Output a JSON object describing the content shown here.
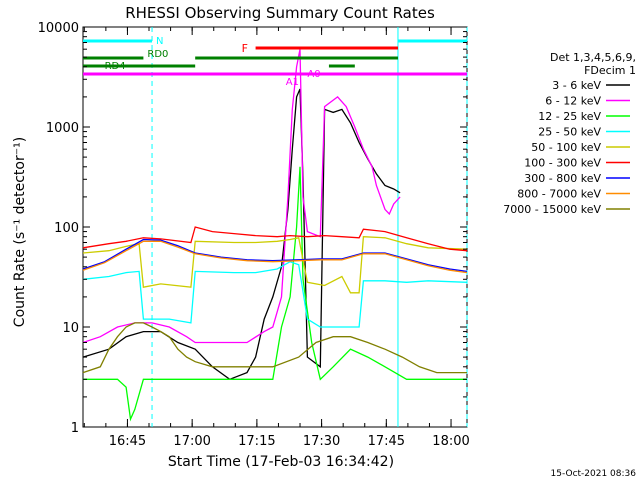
{
  "chart_data": {
    "type": "line",
    "title": "RHESSI Observing Summary Count Rates",
    "xlabel": "Start Time (17-Feb-03 16:34:42)",
    "ylabel": "Count Rate (s⁻¹ detector⁻¹)",
    "yscale": "log",
    "ylim": [
      1,
      10000
    ],
    "xlim_minutes": [
      0,
      89
    ],
    "x_ticks": [
      {
        "label": "16:45",
        "minute": 10.3
      },
      {
        "label": "17:00",
        "minute": 25.3
      },
      {
        "label": "17:15",
        "minute": 40.3
      },
      {
        "label": "17:30",
        "minute": 55.3
      },
      {
        "label": "17:45",
        "minute": 70.3
      },
      {
        "label": "18:00",
        "minute": 85.3
      }
    ],
    "y_ticks": [
      {
        "label": "1",
        "value": 1
      },
      {
        "label": "10",
        "value": 10
      },
      {
        "label": "100",
        "value": 100
      },
      {
        "label": "1000",
        "value": 1000
      },
      {
        "label": "10000",
        "value": 10000
      }
    ],
    "legend_title": [
      "Det 1,3,4,5,6,9,",
      "FDecim 1"
    ],
    "series": [
      {
        "name": "3 - 6 keV",
        "color": "#000000",
        "points": [
          [
            0,
            5
          ],
          [
            6,
            6
          ],
          [
            10,
            8
          ],
          [
            14,
            9
          ],
          [
            18,
            9
          ],
          [
            22,
            7
          ],
          [
            26,
            6
          ],
          [
            30,
            4
          ],
          [
            34,
            3
          ],
          [
            38,
            3.5
          ],
          [
            40,
            5
          ],
          [
            42,
            12
          ],
          [
            44,
            20
          ],
          [
            46,
            40
          ],
          [
            47.5,
            150
          ],
          [
            48.5,
            600
          ],
          [
            49.5,
            2000
          ],
          [
            50.3,
            2400
          ],
          [
            51,
            300
          ],
          [
            52,
            5
          ],
          [
            55,
            4
          ],
          [
            56,
            1500
          ],
          [
            58,
            1400
          ],
          [
            60,
            1500
          ],
          [
            62,
            1100
          ],
          [
            64,
            700
          ],
          [
            66,
            480
          ],
          [
            68,
            340
          ],
          [
            70,
            260
          ],
          [
            72,
            240
          ],
          [
            73.5,
            220
          ]
        ]
      },
      {
        "name": "6 - 12 keV",
        "color": "#ff00ff",
        "points": [
          [
            0,
            7
          ],
          [
            4,
            8
          ],
          [
            8,
            10
          ],
          [
            12,
            11
          ],
          [
            16,
            11
          ],
          [
            20,
            10
          ],
          [
            24,
            8
          ],
          [
            26,
            7
          ],
          [
            30,
            7
          ],
          [
            34,
            7
          ],
          [
            38,
            7
          ],
          [
            42,
            9
          ],
          [
            44,
            10
          ],
          [
            46,
            20
          ],
          [
            47.5,
            200
          ],
          [
            48.5,
            1500
          ],
          [
            49.5,
            4000
          ],
          [
            50.3,
            6000
          ],
          [
            51,
            200
          ],
          [
            52,
            90
          ],
          [
            55,
            80
          ],
          [
            56,
            1600
          ],
          [
            59,
            2000
          ],
          [
            61,
            1600
          ],
          [
            63,
            1000
          ],
          [
            65,
            600
          ],
          [
            67,
            400
          ],
          [
            68,
            260
          ],
          [
            70,
            150
          ],
          [
            71,
            135
          ],
          [
            72,
            170
          ],
          [
            73.5,
            200
          ]
        ]
      },
      {
        "name": "12 - 25 keV",
        "color": "#00ff00",
        "points": [
          [
            0,
            3
          ],
          [
            8,
            3
          ],
          [
            10,
            2.5
          ],
          [
            11,
            1.2
          ],
          [
            12,
            1.5
          ],
          [
            14,
            3
          ],
          [
            25,
            3
          ],
          [
            35,
            3
          ],
          [
            40,
            3
          ],
          [
            44,
            3
          ],
          [
            46,
            10
          ],
          [
            48,
            20
          ],
          [
            49.5,
            100
          ],
          [
            50.3,
            400
          ],
          [
            51,
            30
          ],
          [
            53,
            7
          ],
          [
            55,
            3
          ],
          [
            58,
            4
          ],
          [
            62,
            6
          ],
          [
            66,
            5
          ],
          [
            70,
            4
          ],
          [
            75,
            3
          ],
          [
            80,
            3
          ],
          [
            89,
            3
          ]
        ]
      },
      {
        "name": "25 - 50 keV",
        "color": "#00ffff",
        "points": [
          [
            0,
            30
          ],
          [
            6,
            32
          ],
          [
            10,
            35
          ],
          [
            13,
            36
          ],
          [
            14,
            12
          ],
          [
            20,
            12
          ],
          [
            25,
            11
          ],
          [
            26,
            36
          ],
          [
            35,
            35
          ],
          [
            40,
            35
          ],
          [
            45,
            38
          ],
          [
            48,
            45
          ],
          [
            50,
            42
          ],
          [
            52,
            12
          ],
          [
            55,
            10
          ],
          [
            60,
            10
          ],
          [
            64,
            10
          ],
          [
            65,
            29
          ],
          [
            70,
            29
          ],
          [
            75,
            28
          ],
          [
            80,
            29
          ],
          [
            89,
            28
          ]
        ]
      },
      {
        "name": "50 - 100 keV",
        "color": "#cccc00",
        "points": [
          [
            0,
            55
          ],
          [
            6,
            58
          ],
          [
            10,
            64
          ],
          [
            13,
            68
          ],
          [
            14,
            25
          ],
          [
            18,
            27
          ],
          [
            25,
            25
          ],
          [
            26,
            72
          ],
          [
            35,
            70
          ],
          [
            40,
            70
          ],
          [
            45,
            72
          ],
          [
            48,
            75
          ],
          [
            50,
            78
          ],
          [
            52,
            28
          ],
          [
            56,
            26
          ],
          [
            60,
            32
          ],
          [
            62,
            22
          ],
          [
            64,
            22
          ],
          [
            65,
            80
          ],
          [
            70,
            78
          ],
          [
            75,
            68
          ],
          [
            80,
            62
          ],
          [
            89,
            60
          ]
        ]
      },
      {
        "name": "100 - 300 keV",
        "color": "#ff0000",
        "points": [
          [
            0,
            62
          ],
          [
            6,
            68
          ],
          [
            10,
            72
          ],
          [
            14,
            78
          ],
          [
            18,
            76
          ],
          [
            25,
            70
          ],
          [
            26,
            100
          ],
          [
            30,
            90
          ],
          [
            35,
            86
          ],
          [
            40,
            82
          ],
          [
            45,
            80
          ],
          [
            48,
            82
          ],
          [
            52,
            80
          ],
          [
            56,
            82
          ],
          [
            60,
            80
          ],
          [
            64,
            78
          ],
          [
            65,
            95
          ],
          [
            70,
            90
          ],
          [
            75,
            78
          ],
          [
            80,
            68
          ],
          [
            85,
            60
          ],
          [
            89,
            58
          ]
        ]
      },
      {
        "name": "300 - 800 keV",
        "color": "#0000ff",
        "points": [
          [
            0,
            38
          ],
          [
            5,
            45
          ],
          [
            10,
            60
          ],
          [
            14,
            75
          ],
          [
            18,
            74
          ],
          [
            22,
            65
          ],
          [
            26,
            55
          ],
          [
            32,
            50
          ],
          [
            38,
            47
          ],
          [
            44,
            46
          ],
          [
            50,
            47
          ],
          [
            55,
            48
          ],
          [
            60,
            48
          ],
          [
            65,
            55
          ],
          [
            70,
            55
          ],
          [
            75,
            48
          ],
          [
            80,
            42
          ],
          [
            85,
            38
          ],
          [
            89,
            36
          ]
        ]
      },
      {
        "name": "800 - 7000 keV",
        "color": "#ff8c00",
        "points": [
          [
            0,
            37
          ],
          [
            5,
            44
          ],
          [
            10,
            58
          ],
          [
            14,
            72
          ],
          [
            18,
            72
          ],
          [
            22,
            63
          ],
          [
            26,
            54
          ],
          [
            32,
            49
          ],
          [
            38,
            46
          ],
          [
            44,
            45
          ],
          [
            50,
            46
          ],
          [
            55,
            47
          ],
          [
            60,
            47
          ],
          [
            65,
            54
          ],
          [
            70,
            54
          ],
          [
            75,
            47
          ],
          [
            80,
            41
          ],
          [
            85,
            37
          ],
          [
            89,
            35
          ]
        ]
      },
      {
        "name": "7000 - 15000 keV",
        "color": "#808000",
        "points": [
          [
            0,
            3.5
          ],
          [
            4,
            4
          ],
          [
            6,
            6
          ],
          [
            8,
            8
          ],
          [
            10,
            10
          ],
          [
            12,
            11
          ],
          [
            14,
            11
          ],
          [
            16,
            10
          ],
          [
            18,
            9
          ],
          [
            20,
            8
          ],
          [
            22,
            6
          ],
          [
            24,
            5
          ],
          [
            26,
            4.5
          ],
          [
            30,
            4
          ],
          [
            36,
            4
          ],
          [
            44,
            4
          ],
          [
            50,
            5
          ],
          [
            54,
            7
          ],
          [
            58,
            8
          ],
          [
            62,
            8
          ],
          [
            66,
            7
          ],
          [
            70,
            6
          ],
          [
            74,
            5
          ],
          [
            78,
            4
          ],
          [
            82,
            3.5
          ],
          [
            89,
            3.5
          ]
        ]
      }
    ],
    "attenuator_bars": [
      {
        "label": "N",
        "color": "#00ffff",
        "segments": [
          [
            0,
            16
          ],
          [
            73,
            89
          ]
        ]
      },
      {
        "label": "F",
        "color": "#ff0000",
        "segments": [
          [
            40,
            73
          ]
        ]
      },
      {
        "label": "RD0",
        "color": "#008000",
        "segments": [
          [
            0,
            14
          ],
          [
            26,
            73
          ]
        ]
      },
      {
        "label": "RD4",
        "color": "#008000",
        "segments": [
          [
            0,
            26
          ],
          [
            57,
            63
          ]
        ]
      },
      {
        "label": "A1",
        "color": "#ff00ff",
        "segments": [
          [
            0,
            89
          ]
        ]
      },
      {
        "label": "A0",
        "color": "#ff00ff",
        "segments": [
          [
            52,
            55
          ]
        ]
      }
    ],
    "vertical_markers": [
      {
        "minute": 16,
        "color": "#00ffff",
        "style": "dashed"
      },
      {
        "minute": 73,
        "color": "#00ffff",
        "style": "solid"
      },
      {
        "minute": 89,
        "color": "#00ffff",
        "style": "dashed"
      }
    ],
    "timestamp": "15-Oct-2021 08:36"
  }
}
